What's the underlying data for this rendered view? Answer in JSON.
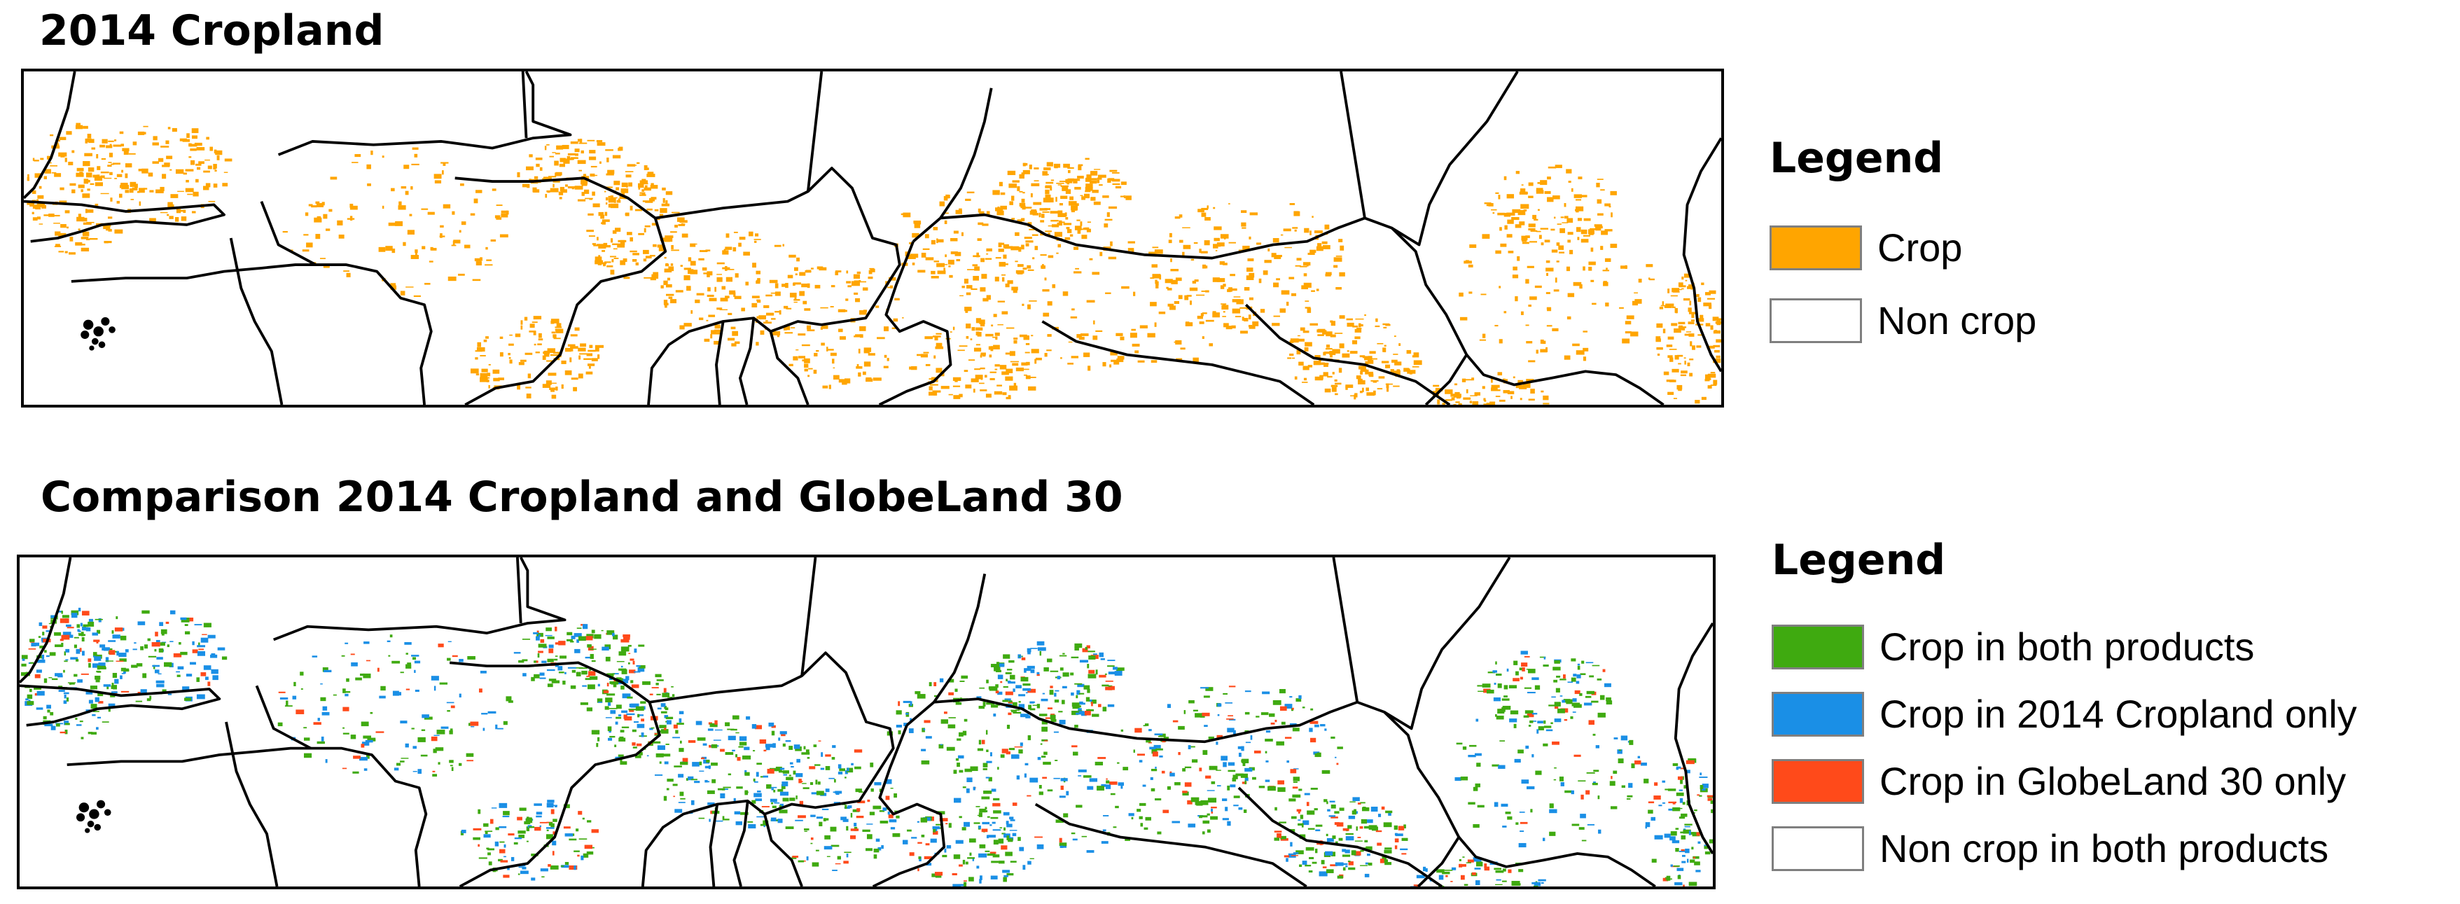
{
  "panels": [
    {
      "title": "2014 Cropland",
      "legend": {
        "title": "Legend",
        "items": [
          {
            "label": "Crop",
            "color": "#FFA500"
          },
          {
            "label": "Non crop",
            "color": "#FFFFFF"
          }
        ]
      }
    },
    {
      "title": "Comparison 2014 Cropland and GlobeLand 30",
      "legend": {
        "title": "Legend",
        "items": [
          {
            "label": "Crop in both products",
            "color": "#3FAA10"
          },
          {
            "label": "Crop in 2014 Cropland only",
            "color": "#1A8FE6"
          },
          {
            "label": "Crop in GlobeLand 30 only",
            "color": "#FF4A1A"
          },
          {
            "label": "Non crop in both products",
            "color": "#FFFFFF"
          }
        ]
      }
    }
  ]
}
